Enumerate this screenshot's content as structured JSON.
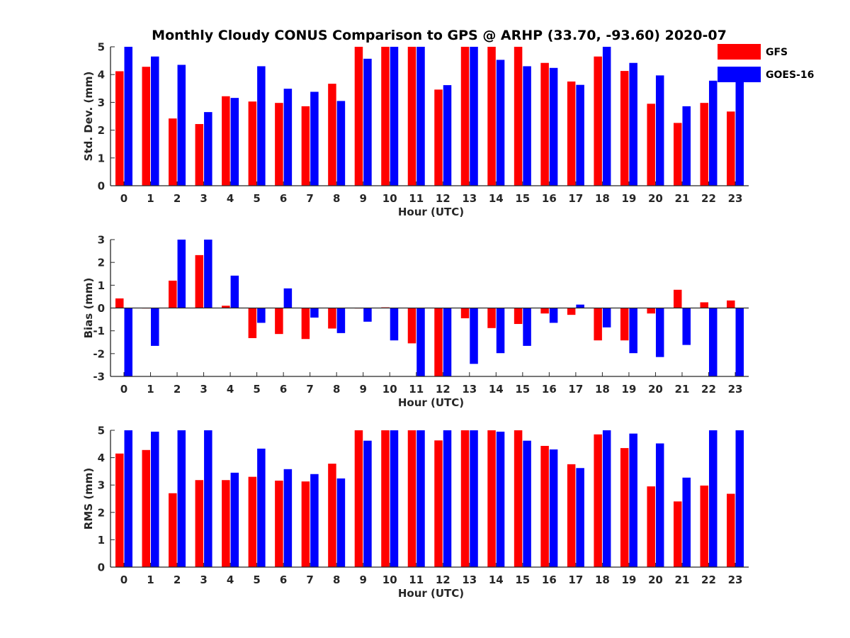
{
  "title": "Monthly Cloudy CONUS Comparison to GPS @ ARHP (33.70, -93.60) 2020-07",
  "legend": {
    "position": "top-right",
    "entries": [
      {
        "name": "GFS",
        "color": "#ff0000"
      },
      {
        "name": "GOES-16",
        "color": "#0000ff"
      }
    ]
  },
  "chart_data": [
    {
      "type": "bar",
      "ylabel": "Std. Dev. (mm)",
      "xlabel": "Hour (UTC)",
      "ylim": [
        0,
        5
      ],
      "yticks": [
        0,
        1,
        2,
        3,
        4,
        5
      ],
      "categories": [
        "0",
        "1",
        "2",
        "3",
        "4",
        "5",
        "6",
        "7",
        "8",
        "9",
        "10",
        "11",
        "12",
        "13",
        "14",
        "15",
        "16",
        "17",
        "18",
        "19",
        "20",
        "21",
        "22",
        "23"
      ],
      "series": [
        {
          "name": "GFS",
          "color": "#ff0000",
          "values": [
            4.12,
            4.28,
            2.42,
            2.22,
            3.22,
            3.03,
            2.98,
            2.86,
            3.67,
            5.0,
            5.0,
            5.0,
            3.46,
            5.0,
            5.0,
            5.0,
            4.42,
            3.75,
            4.65,
            4.13,
            2.95,
            2.26,
            2.98,
            2.67
          ]
        },
        {
          "name": "GOES-16",
          "color": "#0000ff",
          "values": [
            5.0,
            4.65,
            4.35,
            2.65,
            3.16,
            4.3,
            3.49,
            3.38,
            3.05,
            4.57,
            5.0,
            5.0,
            3.62,
            5.0,
            4.53,
            4.3,
            4.24,
            3.63,
            5.0,
            4.42,
            3.97,
            2.86,
            3.78,
            3.78
          ]
        }
      ]
    },
    {
      "type": "bar",
      "ylabel": "Bias (mm)",
      "xlabel": "Hour (UTC)",
      "ylim": [
        -3,
        3
      ],
      "yticks": [
        -3,
        -2,
        -1,
        0,
        1,
        2,
        3
      ],
      "categories": [
        "0",
        "1",
        "2",
        "3",
        "4",
        "5",
        "6",
        "7",
        "8",
        "9",
        "10",
        "11",
        "12",
        "13",
        "14",
        "15",
        "16",
        "17",
        "18",
        "19",
        "20",
        "21",
        "22",
        "23"
      ],
      "series": [
        {
          "name": "GFS",
          "color": "#ff0000",
          "values": [
            0.42,
            -0.02,
            1.2,
            2.32,
            0.1,
            -1.32,
            -1.14,
            -1.36,
            -0.9,
            -0.02,
            0.03,
            -1.55,
            -3.0,
            -0.45,
            -0.88,
            -0.7,
            -0.24,
            -0.3,
            -1.42,
            -1.42,
            -0.24,
            0.8,
            0.25,
            0.33
          ]
        },
        {
          "name": "GOES-16",
          "color": "#0000ff",
          "values": [
            -3.0,
            -1.66,
            3.0,
            3.0,
            1.42,
            -0.65,
            0.86,
            -0.42,
            -1.1,
            -0.6,
            -1.42,
            -3.0,
            -3.0,
            -2.45,
            -1.98,
            -1.66,
            -0.65,
            0.15,
            -0.85,
            -1.98,
            -2.15,
            -1.62,
            -3.0,
            -3.0
          ]
        }
      ]
    },
    {
      "type": "bar",
      "ylabel": "RMS (mm)",
      "xlabel": "Hour (UTC)",
      "ylim": [
        0,
        5
      ],
      "yticks": [
        0,
        1,
        2,
        3,
        4,
        5
      ],
      "categories": [
        "0",
        "1",
        "2",
        "3",
        "4",
        "5",
        "6",
        "7",
        "8",
        "9",
        "10",
        "11",
        "12",
        "13",
        "14",
        "15",
        "16",
        "17",
        "18",
        "19",
        "20",
        "21",
        "22",
        "23"
      ],
      "series": [
        {
          "name": "GFS",
          "color": "#ff0000",
          "values": [
            4.15,
            4.28,
            2.7,
            3.18,
            3.18,
            3.3,
            3.16,
            3.13,
            3.78,
            5.0,
            5.0,
            5.0,
            4.63,
            5.0,
            5.0,
            5.0,
            4.43,
            3.76,
            4.85,
            4.35,
            2.95,
            2.4,
            2.98,
            2.68
          ]
        },
        {
          "name": "GOES-16",
          "color": "#0000ff",
          "values": [
            5.0,
            4.95,
            5.0,
            5.0,
            3.45,
            4.33,
            3.58,
            3.4,
            3.24,
            4.62,
            5.0,
            5.0,
            5.0,
            5.0,
            4.95,
            4.62,
            4.3,
            3.62,
            5.0,
            4.88,
            4.52,
            3.27,
            5.0,
            5.0
          ]
        }
      ]
    }
  ]
}
